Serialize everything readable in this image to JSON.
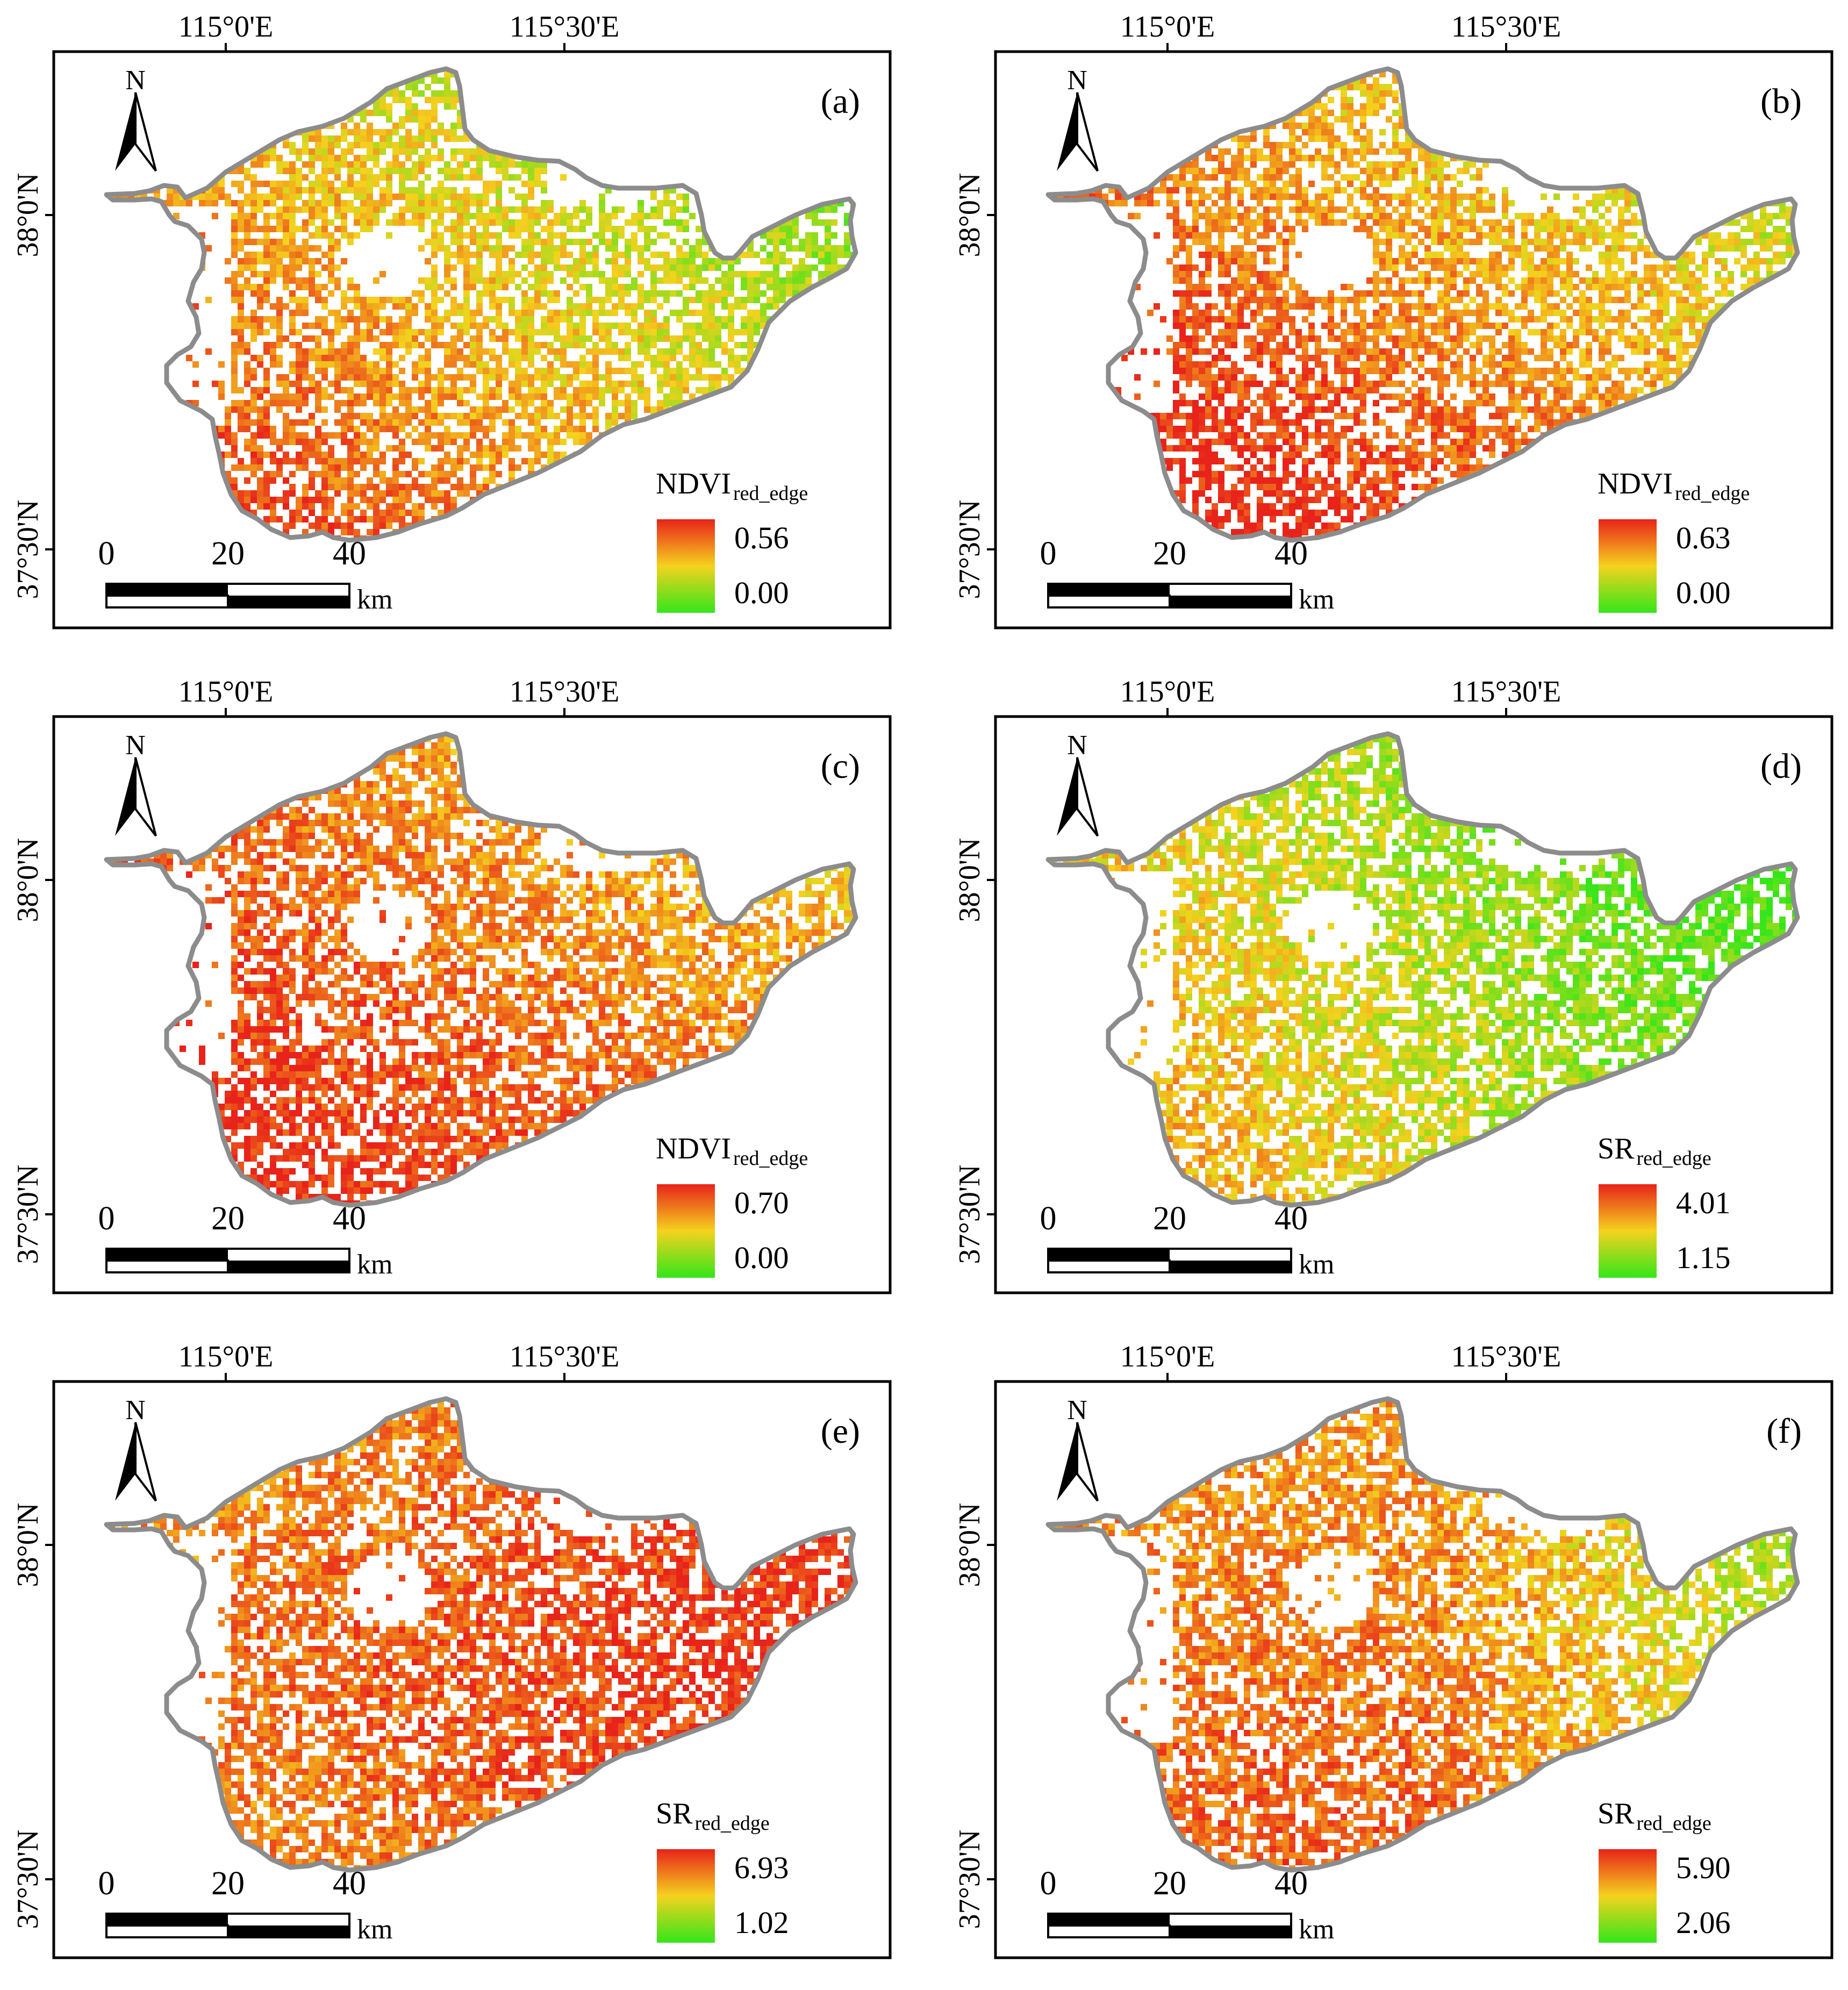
{
  "figure": {
    "coord_labels": {
      "lon1": "115°0'E",
      "lon2": "115°30'E",
      "lat1": "38°0'N",
      "lat2": "37°30'N"
    },
    "north_label": "N",
    "scale_bar": {
      "ticks": [
        "0",
        "20",
        "40"
      ],
      "unit": "km"
    },
    "colors": {
      "high": "#e8231a",
      "mid": "#f5d21e",
      "low": "#33e61a",
      "boundary": "#8c8c8c",
      "frame": "#000000"
    }
  },
  "panels": [
    {
      "label": "(a)",
      "index_name": "NDVI",
      "index_sub": "red_edge",
      "max": "0.56",
      "min": "0.00",
      "dominant": "yellow-green"
    },
    {
      "label": "(b)",
      "index_name": "NDVI",
      "index_sub": "red_edge",
      "max": "0.63",
      "min": "0.00",
      "dominant": "orange-yellow"
    },
    {
      "label": "(c)",
      "index_name": "NDVI",
      "index_sub": "red_edge",
      "max": "0.70",
      "min": "0.00",
      "dominant": "orange"
    },
    {
      "label": "(d)",
      "index_name": "SR",
      "index_sub": "red_edge",
      "max": "4.01",
      "min": "1.15",
      "dominant": "green-yellow"
    },
    {
      "label": "(e)",
      "index_name": "SR",
      "index_sub": "red_edge",
      "max": "6.93",
      "min": "1.02",
      "dominant": "orange-red"
    },
    {
      "label": "(f)",
      "index_name": "SR",
      "index_sub": "red_edge",
      "max": "5.90",
      "min": "2.06",
      "dominant": "orange-green"
    }
  ]
}
